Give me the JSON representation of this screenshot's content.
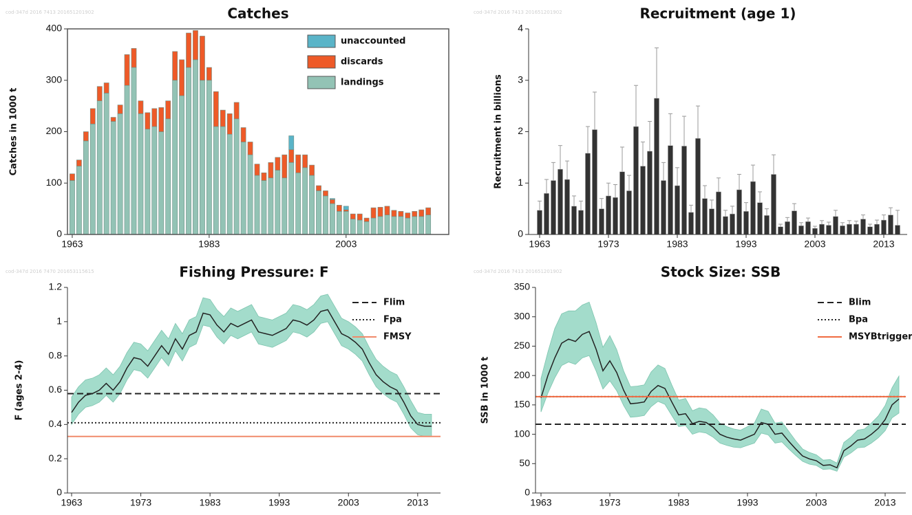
{
  "chart_data": [
    {
      "type": "bar",
      "stacked": true,
      "title": "Catches",
      "watermark": "cod-347d 2016 7413 201651201902",
      "ylabel": "Catches in 1000 t",
      "frame": true,
      "legend": "upper right",
      "x": [
        1963,
        1964,
        1965,
        1966,
        1967,
        1968,
        1969,
        1970,
        1971,
        1972,
        1973,
        1974,
        1975,
        1976,
        1977,
        1978,
        1979,
        1980,
        1981,
        1982,
        1983,
        1984,
        1985,
        1986,
        1987,
        1988,
        1989,
        1990,
        1991,
        1992,
        1993,
        1994,
        1995,
        1996,
        1997,
        1998,
        1999,
        2000,
        2001,
        2002,
        2003,
        2004,
        2005,
        2006,
        2007,
        2008,
        2009,
        2010,
        2011,
        2012,
        2013,
        2014,
        2015
      ],
      "xlim": [
        1962.3,
        2018
      ],
      "xticks": [
        1963,
        1983,
        2003
      ],
      "ylim": [
        0,
        400
      ],
      "yticks": [
        0,
        100,
        200,
        300,
        400
      ],
      "series": [
        {
          "name": "landings",
          "color": "#93c3b5",
          "values": [
            105,
            133,
            182,
            215,
            260,
            275,
            220,
            235,
            290,
            325,
            235,
            205,
            210,
            200,
            225,
            300,
            270,
            325,
            340,
            300,
            300,
            210,
            210,
            195,
            225,
            180,
            155,
            115,
            105,
            110,
            125,
            110,
            140,
            120,
            130,
            115,
            85,
            75,
            60,
            45,
            45,
            30,
            28,
            25,
            32,
            35,
            38,
            35,
            35,
            32,
            35,
            35,
            38
          ]
        },
        {
          "name": "discards",
          "color": "#ee5a28",
          "values": [
            13,
            12,
            18,
            30,
            28,
            20,
            8,
            17,
            60,
            37,
            25,
            32,
            35,
            47,
            35,
            56,
            70,
            67,
            57,
            86,
            25,
            68,
            32,
            40,
            32,
            28,
            25,
            22,
            15,
            30,
            25,
            45,
            25,
            35,
            25,
            20,
            10,
            10,
            8,
            12,
            3,
            10,
            12,
            7,
            20,
            18,
            17,
            12,
            10,
            10,
            10,
            13,
            14
          ]
        },
        {
          "name": "unaccounted",
          "color": "#5ab4c8",
          "values": [
            0,
            0,
            0,
            0,
            0,
            0,
            0,
            0,
            0,
            0,
            0,
            0,
            0,
            0,
            0,
            0,
            0,
            0,
            0,
            0,
            0,
            0,
            0,
            0,
            0,
            0,
            0,
            0,
            0,
            0,
            0,
            0,
            27,
            0,
            0,
            0,
            0,
            0,
            2,
            0,
            7,
            0,
            0,
            0,
            0,
            0,
            0,
            0,
            0,
            0,
            0,
            0,
            0
          ]
        }
      ]
    },
    {
      "type": "bar",
      "title": "Recruitment (age 1)",
      "watermark": "cod-347d 2016 7413 201651201902",
      "ylabel": "Recruitment in billions",
      "color": "#333333",
      "error_color": "#999999",
      "x": [
        1963,
        1964,
        1965,
        1966,
        1967,
        1968,
        1969,
        1970,
        1971,
        1972,
        1973,
        1974,
        1975,
        1976,
        1977,
        1978,
        1979,
        1980,
        1981,
        1982,
        1983,
        1984,
        1985,
        1986,
        1987,
        1988,
        1989,
        1990,
        1991,
        1992,
        1993,
        1994,
        1995,
        1996,
        1997,
        1998,
        1999,
        2000,
        2001,
        2002,
        2003,
        2004,
        2005,
        2006,
        2007,
        2008,
        2009,
        2010,
        2011,
        2012,
        2013,
        2014,
        2015
      ],
      "xlim": [
        1961.4,
        2016.4
      ],
      "xticks": [
        1963,
        1973,
        1983,
        1993,
        2003,
        2013
      ],
      "ylim": [
        0,
        4
      ],
      "yticks": [
        0,
        1,
        2,
        3,
        4
      ],
      "values": [
        0.47,
        0.8,
        1.05,
        1.27,
        1.07,
        0.55,
        0.47,
        1.58,
        2.04,
        0.5,
        0.75,
        0.72,
        1.22,
        0.85,
        2.1,
        1.33,
        1.62,
        2.65,
        1.05,
        1.73,
        0.95,
        1.72,
        0.43,
        1.87,
        0.7,
        0.5,
        0.83,
        0.35,
        0.4,
        0.87,
        0.45,
        1.03,
        0.62,
        0.37,
        1.17,
        0.15,
        0.25,
        0.46,
        0.17,
        0.25,
        0.12,
        0.2,
        0.18,
        0.35,
        0.17,
        0.2,
        0.2,
        0.3,
        0.15,
        0.2,
        0.28,
        0.38,
        0.18
      ],
      "upper": [
        0.65,
        1.07,
        1.4,
        1.73,
        1.43,
        0.75,
        0.65,
        2.1,
        2.77,
        0.7,
        1.0,
        0.97,
        1.7,
        1.15,
        2.9,
        1.8,
        2.2,
        3.63,
        1.4,
        2.35,
        1.3,
        2.3,
        0.57,
        2.5,
        0.95,
        0.67,
        1.1,
        0.47,
        0.55,
        1.17,
        0.62,
        1.35,
        0.83,
        0.5,
        1.55,
        0.2,
        0.33,
        0.6,
        0.23,
        0.32,
        0.16,
        0.27,
        0.24,
        0.47,
        0.23,
        0.27,
        0.26,
        0.38,
        0.2,
        0.28,
        0.38,
        0.52,
        0.47
      ]
    },
    {
      "type": "line",
      "title": "Fishing Pressure: F",
      "watermark": "cod-347d 2016 7470 201653115615",
      "ylabel": "F (ages 2-4)",
      "color": "#222222",
      "legend": "upper right",
      "x": [
        1963,
        1964,
        1965,
        1966,
        1967,
        1968,
        1969,
        1970,
        1971,
        1972,
        1973,
        1974,
        1975,
        1976,
        1977,
        1978,
        1979,
        1980,
        1981,
        1982,
        1983,
        1984,
        1985,
        1986,
        1987,
        1988,
        1989,
        1990,
        1991,
        1992,
        1993,
        1994,
        1995,
        1996,
        1997,
        1998,
        1999,
        2000,
        2001,
        2002,
        2003,
        2004,
        2005,
        2006,
        2007,
        2008,
        2009,
        2010,
        2011,
        2012,
        2013,
        2014,
        2015
      ],
      "xlim": [
        1962.4,
        2016.3
      ],
      "xticks": [
        1963,
        1973,
        1983,
        1993,
        2003,
        2013
      ],
      "ylim": [
        0,
        1.2
      ],
      "yticks": [
        0,
        0.2,
        0.4,
        0.6,
        0.8,
        1,
        1.2
      ],
      "values": [
        0.47,
        0.53,
        0.57,
        0.58,
        0.6,
        0.64,
        0.6,
        0.65,
        0.73,
        0.79,
        0.78,
        0.74,
        0.8,
        0.86,
        0.81,
        0.9,
        0.84,
        0.92,
        0.94,
        1.05,
        1.04,
        0.98,
        0.94,
        0.99,
        0.97,
        0.99,
        1.01,
        0.94,
        0.93,
        0.92,
        0.94,
        0.96,
        1.01,
        1.0,
        0.98,
        1.01,
        1.06,
        1.07,
        1.0,
        0.93,
        0.91,
        0.88,
        0.84,
        0.76,
        0.69,
        0.65,
        0.62,
        0.6,
        0.53,
        0.45,
        0.4,
        0.39,
        0.39
      ],
      "band": {
        "color": "#a3dccb",
        "lower": [
          0.4,
          0.46,
          0.5,
          0.51,
          0.53,
          0.57,
          0.53,
          0.58,
          0.66,
          0.72,
          0.71,
          0.67,
          0.73,
          0.79,
          0.74,
          0.83,
          0.77,
          0.85,
          0.87,
          0.98,
          0.97,
          0.91,
          0.87,
          0.92,
          0.9,
          0.92,
          0.94,
          0.87,
          0.86,
          0.85,
          0.87,
          0.89,
          0.94,
          0.93,
          0.91,
          0.94,
          0.99,
          1.0,
          0.93,
          0.86,
          0.84,
          0.81,
          0.77,
          0.69,
          0.62,
          0.58,
          0.55,
          0.53,
          0.46,
          0.38,
          0.34,
          0.33,
          0.33
        ],
        "upper": [
          0.56,
          0.62,
          0.66,
          0.67,
          0.69,
          0.73,
          0.69,
          0.74,
          0.82,
          0.88,
          0.87,
          0.83,
          0.89,
          0.95,
          0.9,
          0.99,
          0.93,
          1.01,
          1.03,
          1.14,
          1.13,
          1.07,
          1.03,
          1.08,
          1.06,
          1.08,
          1.1,
          1.03,
          1.02,
          1.01,
          1.03,
          1.05,
          1.1,
          1.09,
          1.07,
          1.1,
          1.15,
          1.16,
          1.09,
          1.02,
          1.0,
          0.97,
          0.93,
          0.85,
          0.78,
          0.74,
          0.71,
          0.69,
          0.62,
          0.54,
          0.47,
          0.46,
          0.46
        ]
      },
      "reference_lines": [
        {
          "name": "Flim",
          "value": 0.58,
          "color": "#222222",
          "style": "dashed"
        },
        {
          "name": "Fpa",
          "value": 0.41,
          "color": "#222222",
          "style": "dotted"
        },
        {
          "name": "FMSY",
          "value": 0.33,
          "color": "#f08a6a",
          "style": "solid"
        }
      ]
    },
    {
      "type": "line",
      "title": "Stock Size: SSB",
      "watermark": "cod-347d 2016 7413 201651201902",
      "ylabel": "SSB in 1000 t",
      "color": "#222222",
      "legend": "upper right",
      "x": [
        1963,
        1964,
        1965,
        1966,
        1967,
        1968,
        1969,
        1970,
        1971,
        1972,
        1973,
        1974,
        1975,
        1976,
        1977,
        1978,
        1979,
        1980,
        1981,
        1982,
        1983,
        1984,
        1985,
        1986,
        1987,
        1988,
        1989,
        1990,
        1991,
        1992,
        1993,
        1994,
        1995,
        1996,
        1997,
        1998,
        1999,
        2000,
        2001,
        2002,
        2003,
        2004,
        2005,
        2006,
        2007,
        2008,
        2009,
        2010,
        2011,
        2012,
        2013,
        2014,
        2015
      ],
      "xlim": [
        1962.2,
        2016
      ],
      "xticks": [
        1963,
        1973,
        1983,
        1993,
        2003,
        2013
      ],
      "ylim": [
        0,
        350
      ],
      "yticks": [
        0,
        50,
        100,
        150,
        200,
        250,
        300,
        350
      ],
      "values": [
        162,
        200,
        230,
        255,
        262,
        258,
        270,
        275,
        245,
        208,
        225,
        205,
        175,
        152,
        153,
        155,
        173,
        183,
        178,
        155,
        133,
        135,
        118,
        122,
        120,
        112,
        100,
        95,
        92,
        90,
        95,
        100,
        120,
        117,
        100,
        102,
        88,
        75,
        63,
        58,
        55,
        47,
        48,
        43,
        72,
        80,
        90,
        92,
        100,
        110,
        125,
        150,
        160
      ],
      "band": {
        "color": "#a3dccb",
        "lower": [
          138,
          170,
          196,
          217,
          223,
          219,
          230,
          234,
          208,
          177,
          191,
          174,
          149,
          129,
          130,
          132,
          147,
          156,
          151,
          132,
          113,
          115,
          100,
          104,
          102,
          95,
          85,
          81,
          78,
          77,
          81,
          85,
          102,
          99,
          85,
          87,
          75,
          64,
          54,
          49,
          47,
          40,
          41,
          37,
          61,
          68,
          77,
          78,
          85,
          94,
          106,
          128,
          136
        ],
        "upper": [
          195,
          240,
          280,
          305,
          310,
          310,
          320,
          325,
          290,
          248,
          268,
          244,
          208,
          181,
          182,
          184,
          206,
          218,
          212,
          184,
          158,
          161,
          140,
          145,
          143,
          133,
          119,
          113,
          109,
          107,
          113,
          119,
          143,
          139,
          119,
          121,
          105,
          89,
          75,
          69,
          65,
          56,
          57,
          51,
          86,
          95,
          107,
          109,
          119,
          131,
          149,
          179,
          199
        ]
      },
      "reference_lines": [
        {
          "name": "Blim",
          "value": 117,
          "color": "#222222",
          "style": "dashed"
        },
        {
          "name": "Bpa",
          "value": 164,
          "color": "#222222",
          "style": "dotted"
        },
        {
          "name": "MSYBtrigger",
          "value": 164,
          "color": "#f06a40",
          "style": "solid"
        }
      ]
    }
  ]
}
